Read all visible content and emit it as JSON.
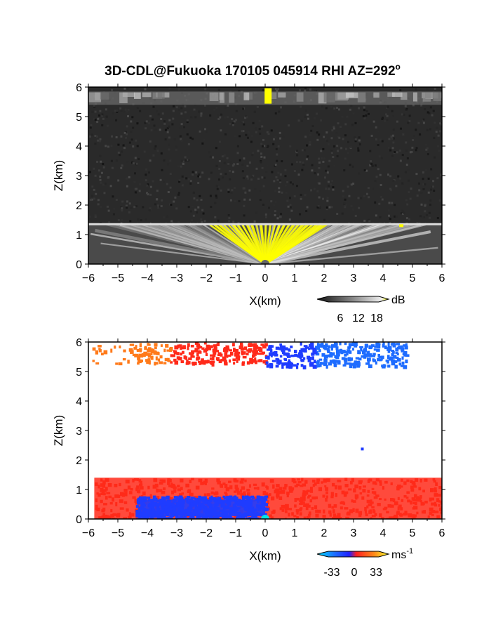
{
  "title": "3D-CDL@Fukuoka 170105 045914 RHI AZ=292",
  "title_superscript": "o",
  "colors": {
    "highlight": "#ffff00",
    "neg_strong": "#1f3cff",
    "neg_light": "#1e6cff",
    "pos": "#ff2a1a",
    "pos_orange": "#ff7a1a",
    "cyan": "#00e5e5"
  },
  "chart_data": [
    {
      "type": "heatmap",
      "panel": "reflectivity",
      "xlabel": "X(km)",
      "ylabel": "Z(km)",
      "xlim": [
        -6,
        6
      ],
      "ylim": [
        0,
        6
      ],
      "xticks": [
        "-6",
        "-5",
        "-4",
        "-3",
        "-2",
        "-1",
        "0",
        "1",
        "2",
        "3",
        "4",
        "5",
        "6"
      ],
      "yticks": [
        "0",
        "1",
        "2",
        "3",
        "4",
        "5",
        "6"
      ],
      "colorbar": {
        "unit": "dB",
        "ticks": [
          "6",
          "12",
          "18"
        ],
        "range": [
          0,
          20
        ]
      },
      "features": [
        {
          "name": "boundary layer",
          "z_top_km": 1.35,
          "x_range_km": [
            -6,
            6
          ]
        },
        {
          "name": "cloud layer",
          "z_range_km": [
            5.4,
            5.85
          ],
          "x_range_km": [
            -6,
            6
          ]
        },
        {
          "name": "strong echo",
          "x_km": 0.1,
          "z_km": 5.7
        }
      ]
    },
    {
      "type": "heatmap",
      "panel": "doppler velocity",
      "xlabel": "X(km)",
      "ylabel": "Z(km)",
      "xlim": [
        -6,
        6
      ],
      "ylim": [
        0,
        6
      ],
      "xticks": [
        "-6",
        "-5",
        "-4",
        "-3",
        "-2",
        "-1",
        "0",
        "1",
        "2",
        "3",
        "4",
        "5",
        "6"
      ],
      "yticks": [
        "0",
        "1",
        "2",
        "3",
        "4",
        "5",
        "6"
      ],
      "colorbar": {
        "unit": "ms",
        "unit_superscript": "-1",
        "ticks": [
          "-33",
          "0",
          "33"
        ],
        "range": [
          -33,
          33
        ]
      },
      "features": [
        {
          "name": "upper layer receding",
          "x_range_km": [
            -5.9,
            0
          ],
          "z_range_km": [
            5.3,
            6.0
          ],
          "sign": "positive"
        },
        {
          "name": "upper layer approaching",
          "x_range_km": [
            0,
            4.8
          ],
          "z_range_km": [
            5.2,
            6.0
          ],
          "sign": "negative"
        },
        {
          "name": "lower layer receding",
          "x_range_km": [
            -5.8,
            6
          ],
          "z_range_km": [
            0,
            1.4
          ],
          "sign": "positive"
        },
        {
          "name": "lower layer approaching",
          "x_range_km": [
            -4.4,
            0
          ],
          "z_range_km": [
            0,
            0.8
          ],
          "sign": "negative"
        }
      ]
    }
  ]
}
